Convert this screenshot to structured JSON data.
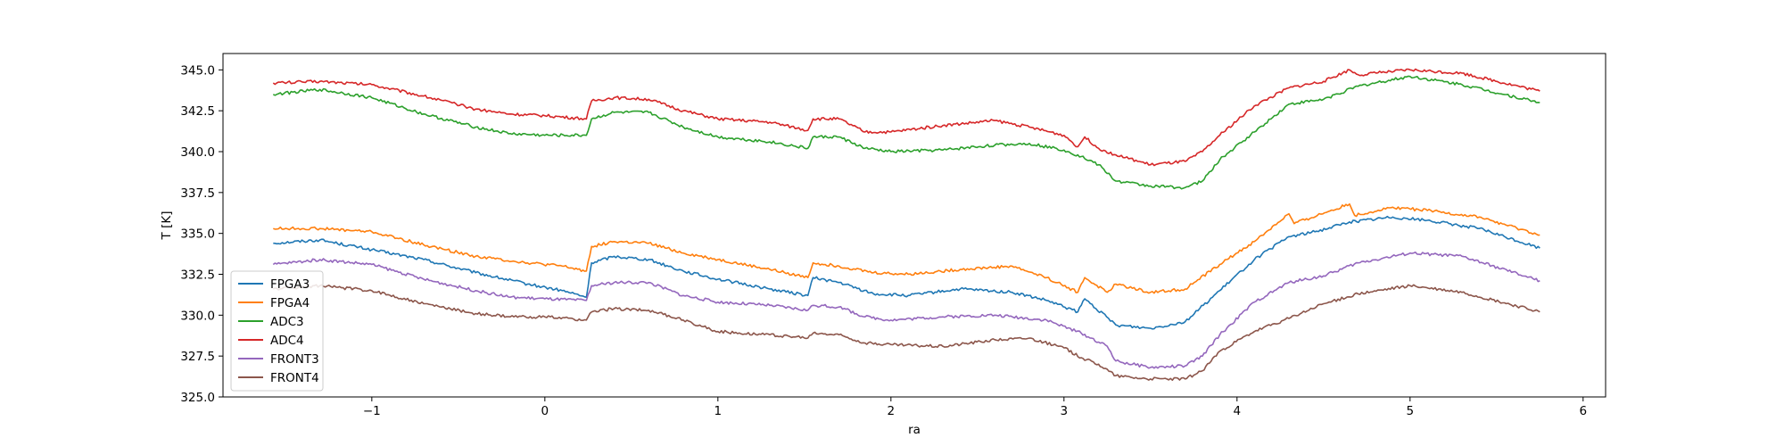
{
  "chart_data": {
    "type": "line",
    "title": "",
    "xlabel": "ra",
    "ylabel": "T [K]",
    "xlim": [
      -1.86,
      6.13
    ],
    "ylim": [
      325.0,
      346.0
    ],
    "xticks": [
      -1,
      0,
      1,
      2,
      3,
      4,
      5,
      6
    ],
    "yticks": [
      325.0,
      327.5,
      330.0,
      332.5,
      335.0,
      337.5,
      340.0,
      342.5,
      345.0
    ],
    "xtick_labels": [
      "−1",
      "0",
      "1",
      "2",
      "3",
      "4",
      "5",
      "6"
    ],
    "ytick_labels": [
      "325.0",
      "327.5",
      "330.0",
      "332.5",
      "335.0",
      "337.5",
      "340.0",
      "342.5",
      "345.0"
    ],
    "grid": false,
    "legend_position": "lower-left",
    "series": [
      {
        "name": "FPGA3",
        "color": "#1f77b4",
        "x": [
          -1.57,
          -1.3,
          -1.0,
          -0.7,
          -0.4,
          -0.1,
          0.1,
          0.24,
          0.27,
          0.4,
          0.6,
          0.8,
          1.0,
          1.3,
          1.52,
          1.55,
          1.7,
          1.9,
          2.1,
          2.4,
          2.7,
          2.9,
          3.08,
          3.12,
          3.3,
          3.5,
          3.7,
          3.9,
          4.1,
          4.3,
          4.45,
          4.65,
          4.9,
          5.1,
          5.4,
          5.75
        ],
        "y": [
          334.4,
          334.6,
          334.0,
          333.4,
          332.6,
          331.9,
          331.5,
          331.1,
          333.2,
          333.6,
          333.4,
          332.7,
          332.2,
          331.6,
          331.2,
          332.3,
          332.0,
          331.3,
          331.2,
          331.6,
          331.4,
          330.9,
          330.2,
          331.0,
          329.4,
          329.2,
          329.6,
          331.5,
          333.4,
          334.8,
          335.1,
          335.7,
          336.0,
          335.8,
          335.3,
          334.1
        ]
      },
      {
        "name": "FPGA4",
        "color": "#ff7f0e",
        "x": [
          -1.57,
          -1.3,
          -1.0,
          -0.7,
          -0.4,
          -0.1,
          0.1,
          0.24,
          0.27,
          0.4,
          0.6,
          0.8,
          1.0,
          1.3,
          1.52,
          1.55,
          1.7,
          1.9,
          2.1,
          2.4,
          2.7,
          2.9,
          3.08,
          3.12,
          3.25,
          3.3,
          3.5,
          3.7,
          3.9,
          4.1,
          4.3,
          4.33,
          4.65,
          4.68,
          4.9,
          5.1,
          5.4,
          5.75
        ],
        "y": [
          335.3,
          335.3,
          335.1,
          334.3,
          333.6,
          333.2,
          333.0,
          332.7,
          334.2,
          334.5,
          334.4,
          333.8,
          333.4,
          332.8,
          332.3,
          333.2,
          333.0,
          332.6,
          332.5,
          332.8,
          333.0,
          332.3,
          331.4,
          332.3,
          331.4,
          331.9,
          331.4,
          331.6,
          333.1,
          334.5,
          336.2,
          335.6,
          336.8,
          336.1,
          336.6,
          336.4,
          336.0,
          334.9
        ]
      },
      {
        "name": "ADC3",
        "color": "#2ca02c",
        "x": [
          -1.57,
          -1.3,
          -1.0,
          -0.7,
          -0.4,
          -0.2,
          0.0,
          0.24,
          0.27,
          0.4,
          0.6,
          0.8,
          1.0,
          1.3,
          1.52,
          1.55,
          1.7,
          1.85,
          2.0,
          2.3,
          2.6,
          2.8,
          3.0,
          3.1,
          3.2,
          3.3,
          3.5,
          3.7,
          3.8,
          3.9,
          4.1,
          4.3,
          4.5,
          4.7,
          5.0,
          5.3,
          5.75
        ],
        "y": [
          343.5,
          343.8,
          343.3,
          342.3,
          341.5,
          341.1,
          341.0,
          341.0,
          342.0,
          342.4,
          342.4,
          341.5,
          340.9,
          340.6,
          340.2,
          340.9,
          340.9,
          340.2,
          340.0,
          340.1,
          340.4,
          340.5,
          340.1,
          339.7,
          339.2,
          338.2,
          337.9,
          337.8,
          338.2,
          339.5,
          341.2,
          342.9,
          343.2,
          344.0,
          344.6,
          344.1,
          343.0
        ]
      },
      {
        "name": "ADC4",
        "color": "#d62728",
        "x": [
          -1.57,
          -1.3,
          -1.0,
          -0.7,
          -0.4,
          -0.2,
          0.0,
          0.24,
          0.27,
          0.4,
          0.6,
          0.8,
          1.0,
          1.3,
          1.52,
          1.55,
          1.7,
          1.85,
          2.0,
          2.3,
          2.6,
          2.8,
          3.0,
          3.08,
          3.12,
          3.2,
          3.3,
          3.5,
          3.7,
          3.8,
          3.9,
          4.1,
          4.3,
          4.5,
          4.65,
          4.7,
          5.0,
          5.3,
          5.75
        ],
        "y": [
          344.2,
          344.3,
          344.1,
          343.4,
          342.6,
          342.3,
          342.2,
          342.0,
          343.1,
          343.3,
          343.2,
          342.5,
          342.0,
          341.8,
          341.3,
          342.0,
          342.0,
          341.2,
          341.2,
          341.6,
          341.9,
          341.5,
          341.0,
          340.3,
          340.9,
          340.2,
          339.8,
          339.2,
          339.4,
          340.0,
          341.0,
          342.8,
          343.9,
          344.3,
          345.0,
          344.7,
          345.0,
          344.8,
          343.7
        ]
      },
      {
        "name": "FRONT3",
        "color": "#9467bd",
        "x": [
          -1.57,
          -1.3,
          -1.0,
          -0.7,
          -0.4,
          -0.2,
          0.0,
          0.24,
          0.27,
          0.4,
          0.6,
          0.8,
          1.0,
          1.3,
          1.52,
          1.55,
          1.7,
          1.85,
          2.0,
          2.3,
          2.6,
          2.9,
          3.1,
          3.25,
          3.3,
          3.5,
          3.7,
          3.8,
          3.9,
          4.1,
          4.3,
          4.5,
          4.7,
          5.0,
          5.3,
          5.75
        ],
        "y": [
          333.1,
          333.4,
          333.1,
          332.2,
          331.5,
          331.1,
          331.0,
          330.9,
          331.8,
          332.0,
          332.0,
          331.2,
          330.8,
          330.6,
          330.3,
          330.6,
          330.5,
          329.9,
          329.7,
          329.9,
          330.0,
          329.7,
          328.9,
          328.1,
          327.2,
          326.8,
          326.9,
          327.5,
          328.8,
          330.8,
          332.0,
          332.4,
          333.2,
          333.8,
          333.6,
          332.1
        ]
      },
      {
        "name": "FRONT4",
        "color": "#8c564b",
        "x": [
          -1.57,
          -1.3,
          -1.0,
          -0.7,
          -0.4,
          -0.2,
          0.0,
          0.24,
          0.27,
          0.4,
          0.6,
          0.8,
          1.0,
          1.3,
          1.52,
          1.55,
          1.7,
          1.85,
          2.0,
          2.3,
          2.6,
          2.8,
          3.0,
          3.1,
          3.2,
          3.3,
          3.5,
          3.7,
          3.8,
          3.9,
          4.1,
          4.3,
          4.5,
          4.7,
          5.0,
          5.3,
          5.75
        ],
        "y": [
          331.6,
          331.8,
          331.5,
          330.7,
          330.1,
          329.9,
          329.9,
          329.7,
          330.2,
          330.4,
          330.3,
          329.7,
          329.0,
          328.8,
          328.6,
          328.9,
          328.8,
          328.3,
          328.2,
          328.1,
          328.5,
          328.6,
          328.0,
          327.4,
          327.0,
          326.3,
          326.1,
          326.1,
          326.6,
          327.8,
          329.0,
          329.8,
          330.7,
          331.3,
          331.8,
          331.4,
          330.2
        ]
      }
    ]
  }
}
